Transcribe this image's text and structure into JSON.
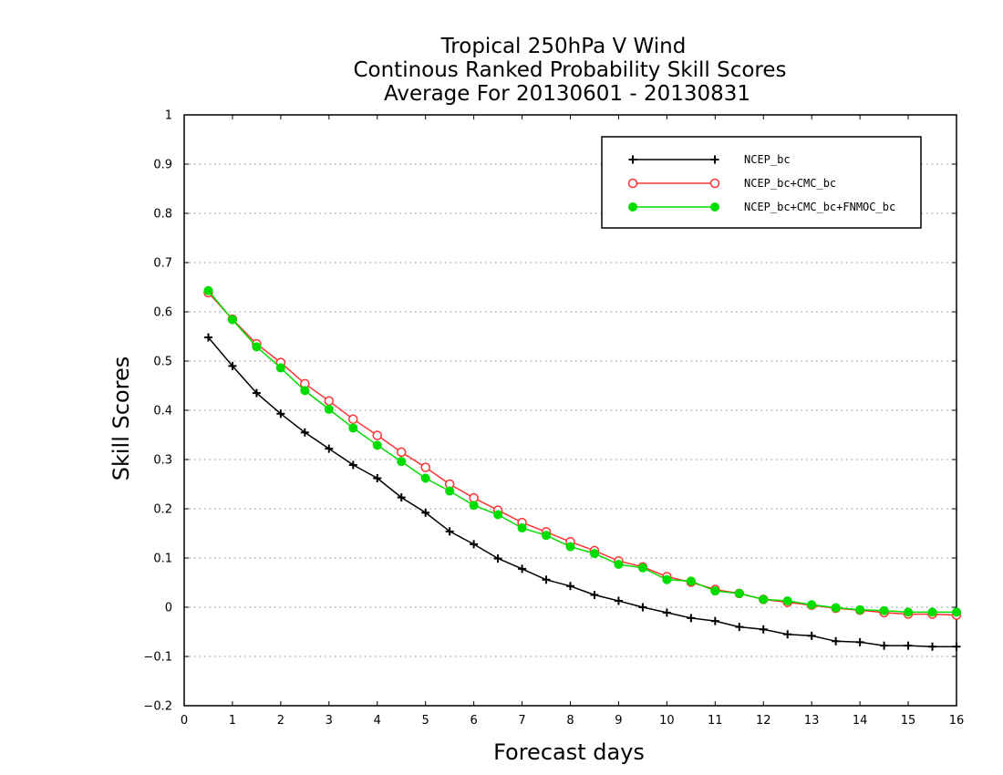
{
  "chart_data": {
    "type": "line",
    "title": [
      "Tropical 250hPa V Wind",
      "Continous Ranked Probability Skill Scores",
      "Average For 20130601 - 20130831"
    ],
    "xlabel": "Forecast days",
    "ylabel": "Skill Scores",
    "xlim": [
      0,
      16
    ],
    "ylim": [
      -0.2,
      1
    ],
    "xticks": [
      "0",
      "1",
      "2",
      "3",
      "4",
      "5",
      "6",
      "7",
      "8",
      "9",
      "10",
      "11",
      "12",
      "13",
      "14",
      "15",
      "16"
    ],
    "yticks": [
      "−0.2",
      "−0.1",
      "0",
      "0.1",
      "0.2",
      "0.3",
      "0.4",
      "0.5",
      "0.6",
      "0.7",
      "0.8",
      "0.9",
      "1"
    ],
    "grid": "horizontal-dotted",
    "legend_position": "top-right",
    "x": [
      0.5,
      1,
      1.5,
      2,
      2.5,
      3,
      3.5,
      4,
      4.5,
      5,
      5.5,
      6,
      6.5,
      7,
      7.5,
      8,
      8.5,
      9,
      9.5,
      10,
      10.5,
      11,
      11.5,
      12,
      12.5,
      13,
      13.5,
      14,
      14.5,
      15,
      15.5,
      16
    ],
    "series": [
      {
        "name": "NCEP_bc",
        "color": "#000000",
        "marker": "plus",
        "values": [
          0.548,
          0.49,
          0.435,
          0.393,
          0.355,
          0.322,
          0.289,
          0.262,
          0.223,
          0.192,
          0.154,
          0.128,
          0.099,
          0.078,
          0.056,
          0.043,
          0.025,
          0.013,
          0.0,
          -0.011,
          -0.022,
          -0.028,
          -0.04,
          -0.045,
          -0.055,
          -0.058,
          -0.069,
          -0.071,
          -0.078,
          -0.078,
          -0.08,
          -0.08
        ]
      },
      {
        "name": "NCEP_bc+CMC_bc",
        "color": "#ff3333",
        "marker": "open-circle",
        "values": [
          0.639,
          0.585,
          0.535,
          0.497,
          0.454,
          0.419,
          0.382,
          0.349,
          0.315,
          0.284,
          0.25,
          0.222,
          0.197,
          0.172,
          0.153,
          0.133,
          0.115,
          0.094,
          0.082,
          0.062,
          0.051,
          0.036,
          0.028,
          0.016,
          0.01,
          0.004,
          -0.002,
          -0.006,
          -0.011,
          -0.014,
          -0.014,
          -0.016
        ]
      },
      {
        "name": "NCEP_bc+CMC_bc+FNMOC_bc",
        "color": "#00dd00",
        "marker": "filled-circle",
        "values": [
          0.643,
          0.584,
          0.529,
          0.486,
          0.44,
          0.402,
          0.364,
          0.329,
          0.296,
          0.262,
          0.236,
          0.207,
          0.188,
          0.161,
          0.146,
          0.123,
          0.109,
          0.087,
          0.08,
          0.056,
          0.053,
          0.033,
          0.028,
          0.016,
          0.013,
          0.005,
          -0.001,
          -0.005,
          -0.007,
          -0.01,
          -0.01,
          -0.01
        ]
      }
    ]
  }
}
